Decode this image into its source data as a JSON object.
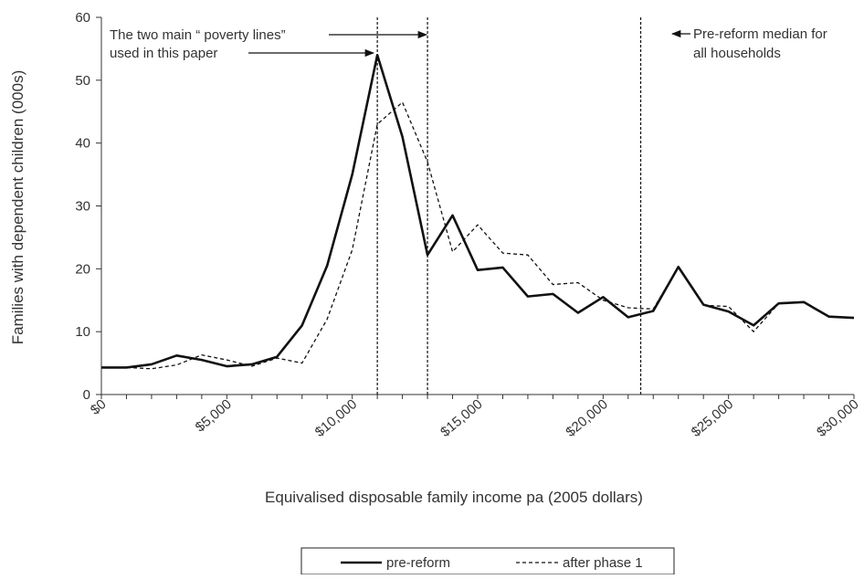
{
  "chart_data": {
    "type": "line",
    "xlabel": "Equivalised disposable family income pa (2005 dollars)",
    "ylabel": "Families with dependent children (000s)",
    "xlim": [
      0,
      30000
    ],
    "ylim": [
      0,
      60
    ],
    "x_ticks": [
      0,
      5000,
      10000,
      15000,
      20000,
      25000,
      30000
    ],
    "x_tick_labels": [
      "$0",
      "$5,000",
      "$10,000",
      "$15,000",
      "$20,000",
      "$25,000",
      "$30,000"
    ],
    "y_ticks": [
      0,
      10,
      20,
      30,
      40,
      50,
      60
    ],
    "y_tick_labels": [
      "0",
      "10",
      "20",
      "30",
      "40",
      "50",
      "60"
    ],
    "x": [
      0,
      1000,
      2000,
      3000,
      4000,
      5000,
      6000,
      7000,
      8000,
      9000,
      10000,
      11000,
      12000,
      13000,
      14000,
      15000,
      16000,
      17000,
      18000,
      19000,
      20000,
      21000,
      22000,
      23000,
      24000,
      25000,
      26000,
      27000,
      28000,
      29000,
      30000
    ],
    "series": [
      {
        "name": "pre-reform",
        "style": "solid",
        "color": "#111111",
        "values": [
          4.3,
          4.3,
          4.8,
          6.2,
          5.5,
          4.5,
          4.8,
          6.0,
          11.0,
          20.5,
          35.0,
          54.0,
          41.0,
          22.2,
          28.5,
          19.8,
          20.2,
          15.6,
          16.0,
          13.0,
          15.5,
          12.3,
          13.3,
          20.3,
          14.3,
          13.2,
          11.0,
          14.5,
          14.7,
          12.4,
          12.2
        ]
      },
      {
        "name": "after phase 1",
        "style": "dashed",
        "color": "#111111",
        "values": [
          4.3,
          4.3,
          4.1,
          4.7,
          6.3,
          5.5,
          4.5,
          5.8,
          5.0,
          12.0,
          23.0,
          43.0,
          46.5,
          37.0,
          22.7,
          27.0,
          22.5,
          22.2,
          17.5,
          17.8,
          15.0,
          13.8,
          13.6,
          20.3,
          14.2,
          14.0,
          10.0,
          14.5,
          14.7,
          12.4,
          12.2
        ]
      }
    ],
    "vlines": [
      11000,
      13000,
      21500
    ],
    "annotations": {
      "poverty_line1": "The two main “ poverty lines”",
      "poverty_line2": "used in this paper",
      "median_line1": "Pre-reform median for",
      "median_line2": "all households"
    },
    "grid": false,
    "legend_position": "bottom"
  }
}
